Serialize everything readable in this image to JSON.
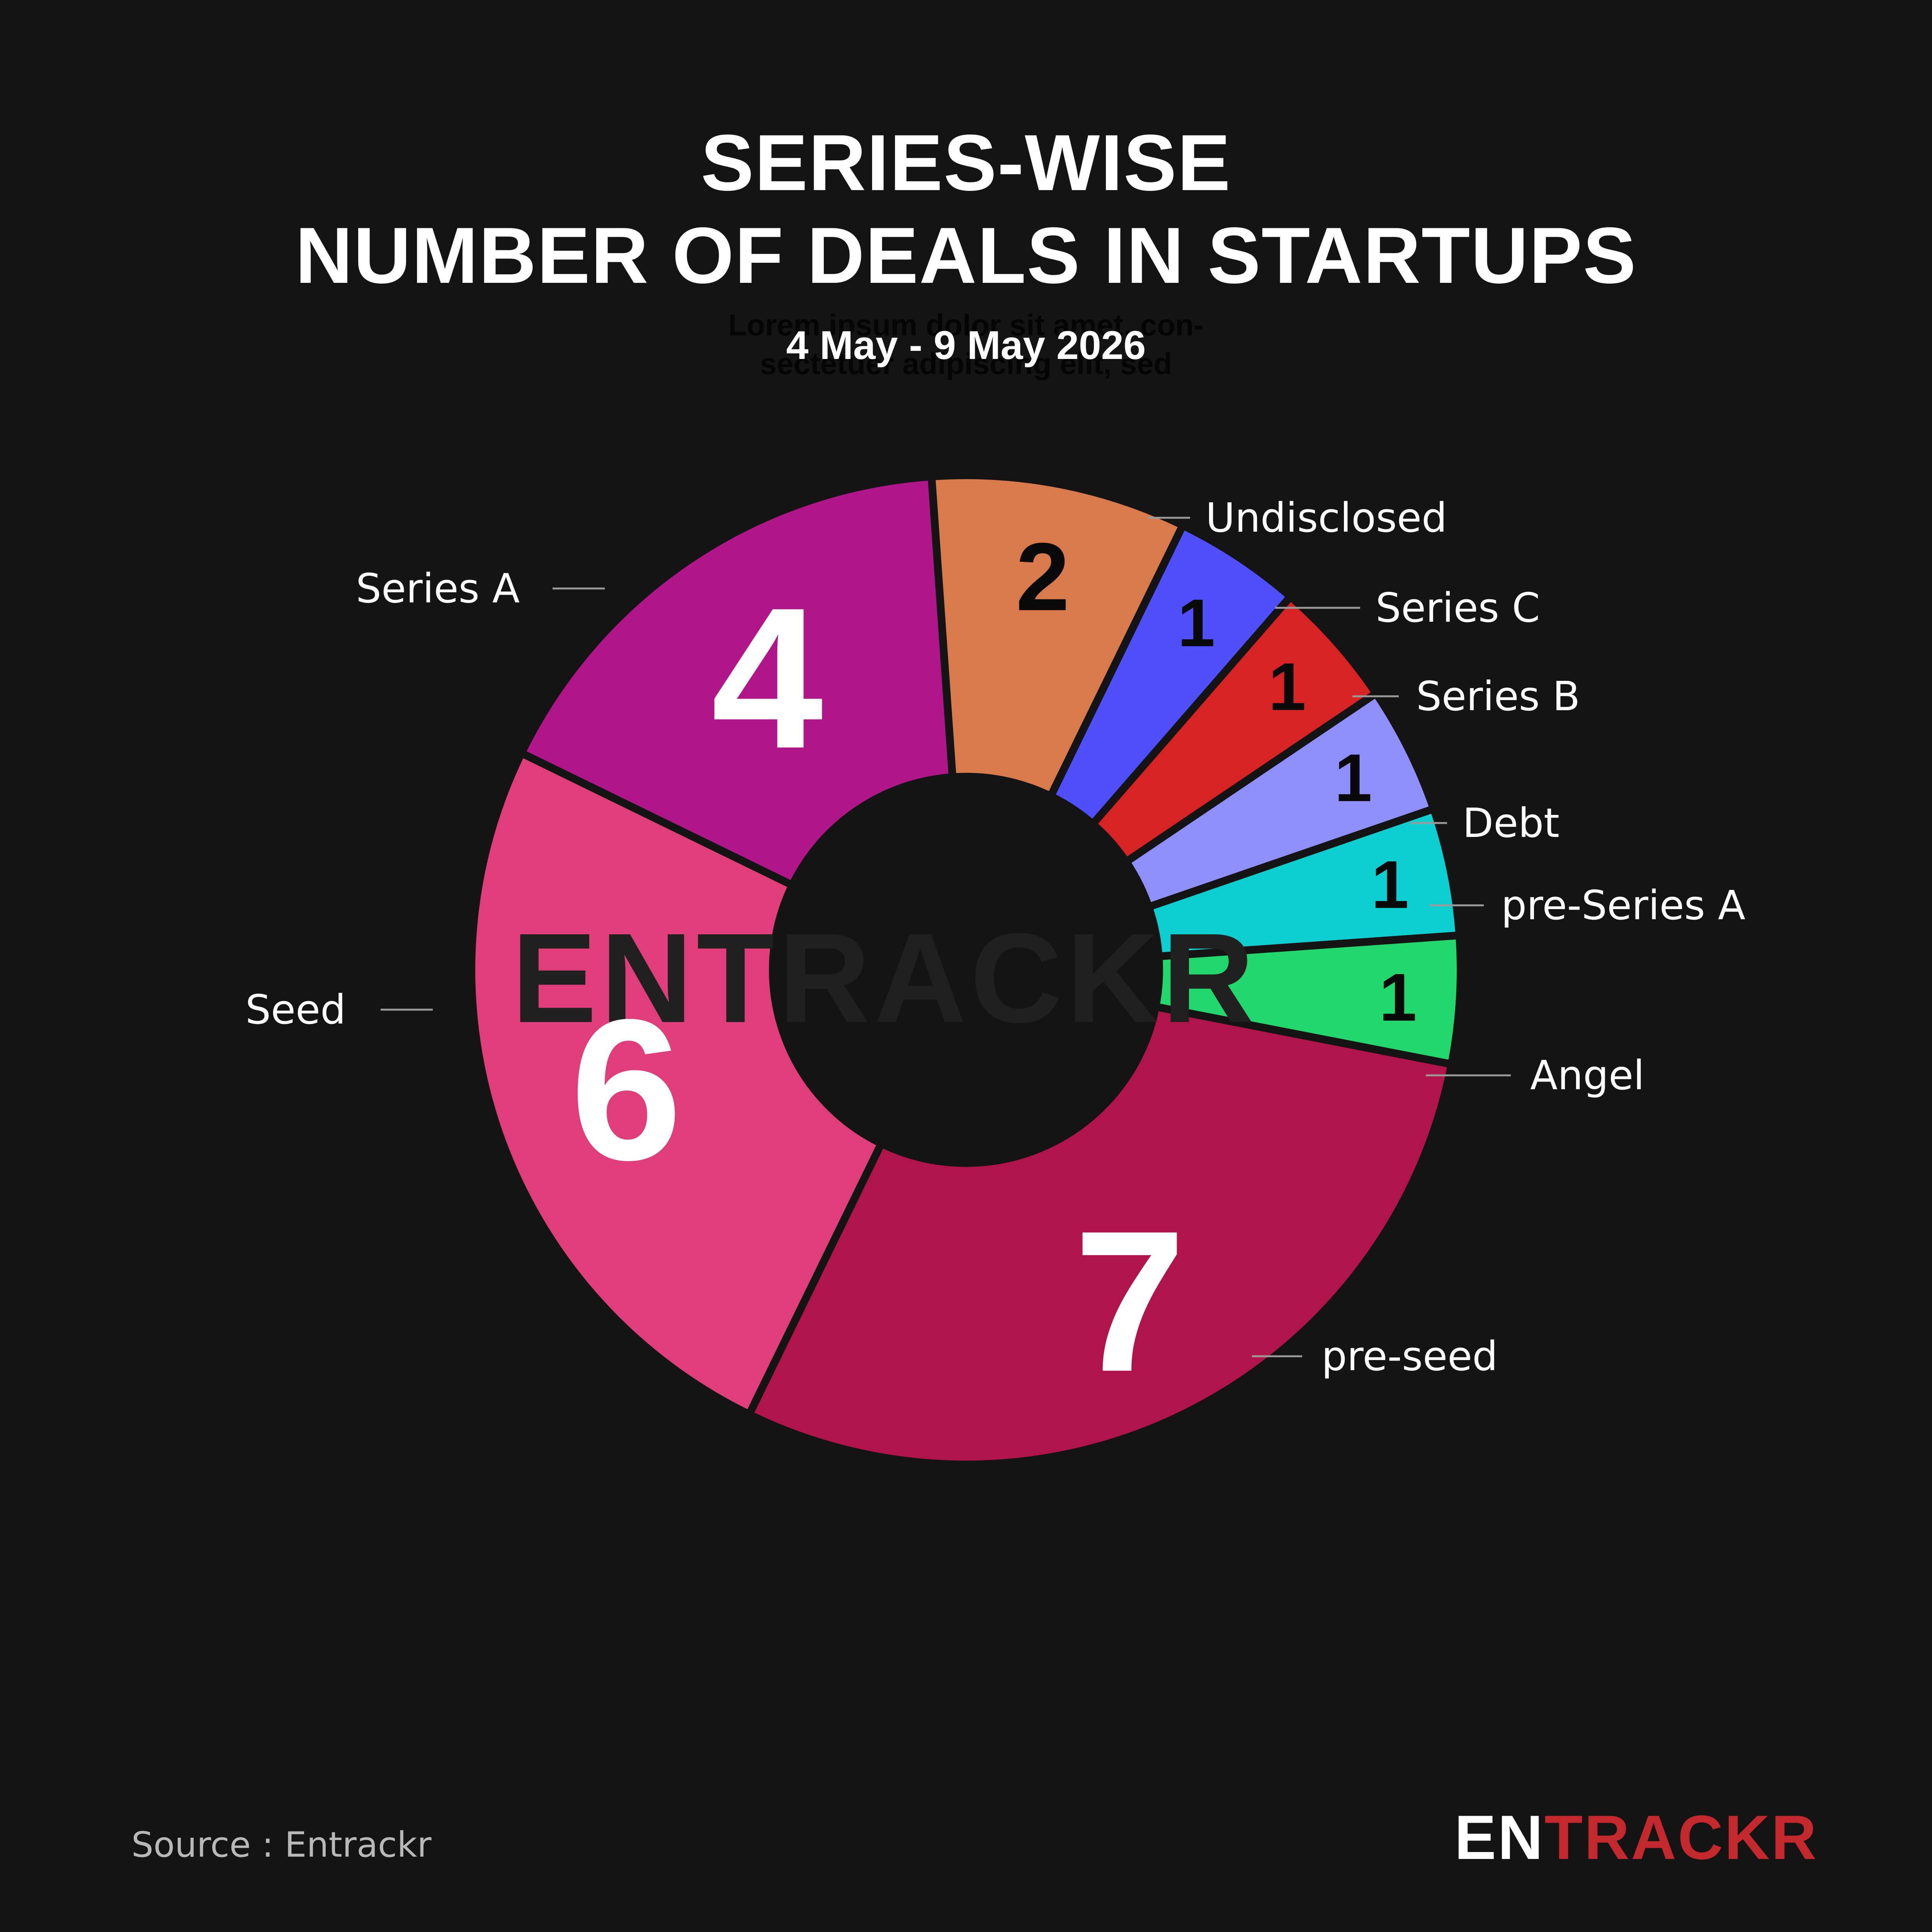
{
  "title_lines": [
    "SERIES-WISE",
    "NUMBER OF DEALS IN STARTUPS"
  ],
  "subtitle": "4 May - 9 May 2026",
  "background_text": [
    "Lorem ipsum dolor sit amet, con-",
    "sectetuer adipiscing elit, sed"
  ],
  "watermark": "ENTRACKR",
  "source": "Source : Entrackr",
  "logo": {
    "part1": "EN",
    "part2": "TRACKR",
    "color1": "#ffffff",
    "color2": "#c3282c"
  },
  "colors": {
    "background": "#141414"
  },
  "chart_data": {
    "type": "pie",
    "donut": true,
    "title": "SERIES-WISE NUMBER OF DEALS IN STARTUPS",
    "subtitle": "4 May - 9 May 2026",
    "slices": [
      {
        "label": "Undisclosed",
        "value": 2,
        "color": "#d97a4c",
        "label_color": "#0a0a0a"
      },
      {
        "label": "Series C",
        "value": 1,
        "color": "#4f4ffc",
        "label_color": "#0a0a0a"
      },
      {
        "label": "Series B",
        "value": 1,
        "color": "#d72323",
        "label_color": "#0a0a0a"
      },
      {
        "label": "Debt",
        "value": 1,
        "color": "#8f8ffd",
        "label_color": "#0a0a0a"
      },
      {
        "label": "pre-Series A",
        "value": 1,
        "color": "#0dcfcf",
        "label_color": "#0a0a0a"
      },
      {
        "label": "Angel",
        "value": 1,
        "color": "#22d86c",
        "label_color": "#0a0a0a"
      },
      {
        "label": "pre-seed",
        "value": 7,
        "color": "#b1144b",
        "label_color": "#ffffff"
      },
      {
        "label": "Seed",
        "value": 6,
        "color": "#df3e7b",
        "label_color": "#ffffff"
      },
      {
        "label": "Series A",
        "value": 4,
        "color": "#b1158a",
        "label_color": "#ffffff"
      }
    ]
  }
}
